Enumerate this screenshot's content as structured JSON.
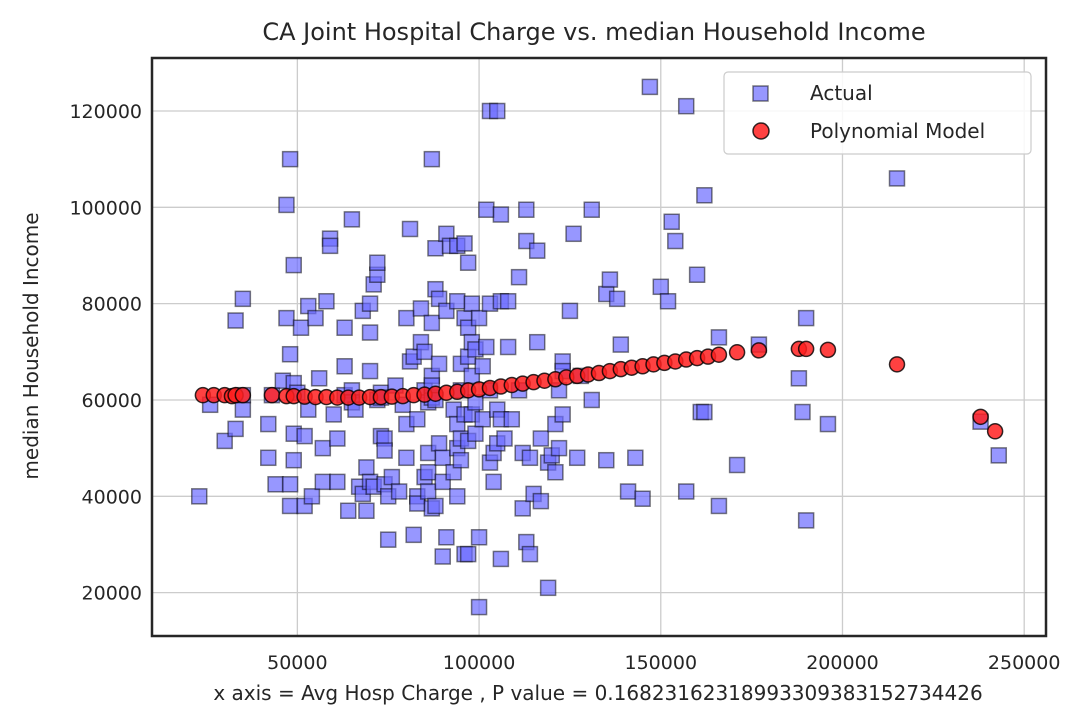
{
  "chart_data": {
    "type": "scatter",
    "title": "CA Joint Hospital Charge vs. median Household Income",
    "xlabel": "x axis = Avg Hosp Charge , P value = 0.16823162318993309383152734426",
    "ylabel": "median Household Income",
    "xlim": [
      10000,
      256000
    ],
    "ylim": [
      11000,
      131000
    ],
    "xticks": [
      50000,
      100000,
      150000,
      200000,
      250000
    ],
    "yticks": [
      20000,
      40000,
      60000,
      80000,
      100000,
      120000
    ],
    "xtick_labels": [
      "50000",
      "100000",
      "150000",
      "200000",
      "250000"
    ],
    "ytick_labels": [
      "20000",
      "40000",
      "60000",
      "80000",
      "100000",
      "120000"
    ],
    "grid": true,
    "legend_position": "top-right",
    "series": [
      {
        "name": "Actual",
        "marker": "square",
        "color": "#6b6bff",
        "points": [
          [
            23000,
            40000
          ],
          [
            26000,
            59000
          ],
          [
            30000,
            51500
          ],
          [
            33000,
            76500
          ],
          [
            33000,
            54000
          ],
          [
            35000,
            81000
          ],
          [
            35000,
            58000
          ],
          [
            35000,
            61000
          ],
          [
            42000,
            55000
          ],
          [
            42000,
            48000
          ],
          [
            43000,
            61000
          ],
          [
            44000,
            42500
          ],
          [
            46000,
            64000
          ],
          [
            47000,
            77000
          ],
          [
            47000,
            100500
          ],
          [
            48000,
            110000
          ],
          [
            48000,
            69500
          ],
          [
            48000,
            38000
          ],
          [
            48000,
            42500
          ],
          [
            49000,
            53000
          ],
          [
            49000,
            47500
          ],
          [
            49000,
            88000
          ],
          [
            49000,
            63500
          ],
          [
            50000,
            61500
          ],
          [
            51000,
            75000
          ],
          [
            52000,
            52500
          ],
          [
            52000,
            38000
          ],
          [
            53000,
            79500
          ],
          [
            53000,
            58000
          ],
          [
            54000,
            40000
          ],
          [
            55000,
            77000
          ],
          [
            56000,
            64500
          ],
          [
            57000,
            43000
          ],
          [
            57000,
            50000
          ],
          [
            58000,
            80500
          ],
          [
            59000,
            93500
          ],
          [
            59000,
            92000
          ],
          [
            60000,
            57000
          ],
          [
            61000,
            52000
          ],
          [
            61000,
            43000
          ],
          [
            63000,
            75000
          ],
          [
            63000,
            67000
          ],
          [
            63000,
            61000
          ],
          [
            64000,
            37000
          ],
          [
            65000,
            97500
          ],
          [
            65000,
            62000
          ],
          [
            65000,
            59500
          ],
          [
            66000,
            58000
          ],
          [
            67000,
            42000
          ],
          [
            68000,
            40500
          ],
          [
            68000,
            78500
          ],
          [
            69000,
            46000
          ],
          [
            69000,
            37000
          ],
          [
            70000,
            74000
          ],
          [
            70000,
            43000
          ],
          [
            70000,
            66000
          ],
          [
            70000,
            80000
          ],
          [
            71000,
            84000
          ],
          [
            71000,
            42000
          ],
          [
            72000,
            86000
          ],
          [
            72000,
            60000
          ],
          [
            72000,
            88500
          ],
          [
            73000,
            52500
          ],
          [
            73000,
            61500
          ],
          [
            73000,
            60500
          ],
          [
            74000,
            52000
          ],
          [
            74000,
            49500
          ],
          [
            74000,
            42500
          ],
          [
            75000,
            40000
          ],
          [
            75000,
            31000
          ],
          [
            76000,
            44000
          ],
          [
            77000,
            63000
          ],
          [
            78000,
            41000
          ],
          [
            79000,
            59000
          ],
          [
            80000,
            77000
          ],
          [
            80000,
            48000
          ],
          [
            80000,
            55000
          ],
          [
            81000,
            95500
          ],
          [
            81000,
            68000
          ],
          [
            82000,
            32000
          ],
          [
            82000,
            69000
          ],
          [
            83000,
            56000
          ],
          [
            83000,
            40000
          ],
          [
            83000,
            38500
          ],
          [
            84000,
            79000
          ],
          [
            84000,
            72000
          ],
          [
            85000,
            70000
          ],
          [
            85000,
            62000
          ],
          [
            85000,
            44000
          ],
          [
            86000,
            41000
          ],
          [
            86000,
            49000
          ],
          [
            86000,
            45000
          ],
          [
            86000,
            59500
          ],
          [
            87000,
            110000
          ],
          [
            87000,
            76000
          ],
          [
            87000,
            37500
          ],
          [
            87000,
            65000
          ],
          [
            87000,
            60500
          ],
          [
            87000,
            63000
          ],
          [
            88000,
            91500
          ],
          [
            88000,
            83000
          ],
          [
            88000,
            38000
          ],
          [
            88000,
            60000
          ],
          [
            89000,
            81000
          ],
          [
            89000,
            67500
          ],
          [
            89000,
            51000
          ],
          [
            90000,
            48000
          ],
          [
            90000,
            43000
          ],
          [
            90000,
            27500
          ],
          [
            91000,
            94500
          ],
          [
            91000,
            78500
          ],
          [
            91000,
            31500
          ],
          [
            92000,
            92000
          ],
          [
            93000,
            58000
          ],
          [
            93000,
            45000
          ],
          [
            94000,
            92000
          ],
          [
            94000,
            80500
          ],
          [
            94000,
            55000
          ],
          [
            94000,
            50000
          ],
          [
            94000,
            40000
          ],
          [
            95000,
            47500
          ],
          [
            95000,
            62000
          ],
          [
            95000,
            67500
          ],
          [
            95000,
            52000
          ],
          [
            96000,
            77000
          ],
          [
            96000,
            92500
          ],
          [
            96000,
            57000
          ],
          [
            96000,
            28000
          ],
          [
            97000,
            88500
          ],
          [
            97000,
            75000
          ],
          [
            97000,
            69000
          ],
          [
            97000,
            51500
          ],
          [
            97000,
            28000
          ],
          [
            98000,
            80000
          ],
          [
            98000,
            72000
          ],
          [
            98000,
            65000
          ],
          [
            98000,
            57000
          ],
          [
            99000,
            70500
          ],
          [
            99000,
            59500
          ],
          [
            99000,
            53000
          ],
          [
            100000,
            77000
          ],
          [
            100000,
            31500
          ],
          [
            100000,
            17000
          ],
          [
            101000,
            67000
          ],
          [
            101000,
            56000
          ],
          [
            102000,
            99500
          ],
          [
            102000,
            71000
          ],
          [
            103000,
            120000
          ],
          [
            103000,
            80000
          ],
          [
            103000,
            62000
          ],
          [
            103000,
            47000
          ],
          [
            104000,
            49000
          ],
          [
            104000,
            43000
          ],
          [
            105000,
            120000
          ],
          [
            105000,
            58000
          ],
          [
            105000,
            51000
          ],
          [
            106000,
            98500
          ],
          [
            106000,
            80500
          ],
          [
            106000,
            56000
          ],
          [
            106000,
            27000
          ],
          [
            107000,
            52000
          ],
          [
            108000,
            80500
          ],
          [
            108000,
            71000
          ],
          [
            109000,
            56000
          ],
          [
            111000,
            85500
          ],
          [
            111000,
            62000
          ],
          [
            112000,
            49000
          ],
          [
            112000,
            37500
          ],
          [
            113000,
            99500
          ],
          [
            113000,
            93000
          ],
          [
            113000,
            30500
          ],
          [
            114000,
            48000
          ],
          [
            114000,
            28000
          ],
          [
            115000,
            40500
          ],
          [
            116000,
            72000
          ],
          [
            116000,
            91000
          ],
          [
            117000,
            39000
          ],
          [
            117000,
            52000
          ],
          [
            119000,
            21000
          ],
          [
            119000,
            47000
          ],
          [
            120000,
            48500
          ],
          [
            121000,
            55000
          ],
          [
            121000,
            45000
          ],
          [
            122000,
            62000
          ],
          [
            122000,
            50000
          ],
          [
            123000,
            68000
          ],
          [
            123000,
            66000
          ],
          [
            123000,
            57000
          ],
          [
            125000,
            78500
          ],
          [
            126000,
            94500
          ],
          [
            127000,
            48000
          ],
          [
            128000,
            65000
          ],
          [
            131000,
            99500
          ],
          [
            131000,
            60000
          ],
          [
            135000,
            82000
          ],
          [
            135000,
            47500
          ],
          [
            136000,
            85000
          ],
          [
            138000,
            81000
          ],
          [
            139000,
            71500
          ],
          [
            141000,
            41000
          ],
          [
            143000,
            48000
          ],
          [
            145000,
            39500
          ],
          [
            147000,
            125000
          ],
          [
            150000,
            83500
          ],
          [
            152000,
            80500
          ],
          [
            153000,
            97000
          ],
          [
            154000,
            93000
          ],
          [
            157000,
            121000
          ],
          [
            157000,
            41000
          ],
          [
            160000,
            86000
          ],
          [
            161000,
            57500
          ],
          [
            162000,
            57500
          ],
          [
            162000,
            102500
          ],
          [
            166000,
            73000
          ],
          [
            166000,
            38000
          ],
          [
            171000,
            46500
          ],
          [
            177000,
            71500
          ],
          [
            188000,
            64500
          ],
          [
            189000,
            57500
          ],
          [
            190000,
            35000
          ],
          [
            190000,
            77000
          ],
          [
            196000,
            55000
          ],
          [
            215000,
            106000
          ],
          [
            238000,
            55500
          ],
          [
            243000,
            48500
          ]
        ]
      },
      {
        "name": "Polynomial Model",
        "marker": "circle",
        "color": "#ff2020",
        "points": [
          [
            24000,
            61000
          ],
          [
            27000,
            61000
          ],
          [
            30000,
            61000
          ],
          [
            32000,
            60800
          ],
          [
            33000,
            61000
          ],
          [
            35000,
            61000
          ],
          [
            43000,
            61000
          ],
          [
            47000,
            60800
          ],
          [
            49000,
            60800
          ],
          [
            52000,
            60700
          ],
          [
            55000,
            60600
          ],
          [
            58000,
            60600
          ],
          [
            61000,
            60500
          ],
          [
            64000,
            60500
          ],
          [
            67000,
            60500
          ],
          [
            70000,
            60600
          ],
          [
            73000,
            60600
          ],
          [
            76000,
            60700
          ],
          [
            79000,
            60800
          ],
          [
            82000,
            61000
          ],
          [
            85000,
            61100
          ],
          [
            88000,
            61300
          ],
          [
            91000,
            61500
          ],
          [
            94000,
            61700
          ],
          [
            97000,
            62000
          ],
          [
            100000,
            62200
          ],
          [
            103000,
            62500
          ],
          [
            106000,
            62800
          ],
          [
            109000,
            63100
          ],
          [
            112000,
            63400
          ],
          [
            115000,
            63700
          ],
          [
            118000,
            64000
          ],
          [
            121000,
            64300
          ],
          [
            124000,
            64700
          ],
          [
            127000,
            65000
          ],
          [
            130000,
            65300
          ],
          [
            133000,
            65600
          ],
          [
            136000,
            66000
          ],
          [
            139000,
            66400
          ],
          [
            142000,
            66700
          ],
          [
            145000,
            67000
          ],
          [
            148000,
            67400
          ],
          [
            151000,
            67700
          ],
          [
            154000,
            68000
          ],
          [
            157000,
            68400
          ],
          [
            160000,
            68700
          ],
          [
            163000,
            69000
          ],
          [
            166000,
            69400
          ],
          [
            171000,
            69900
          ],
          [
            177000,
            70300
          ],
          [
            188000,
            70600
          ],
          [
            190000,
            70600
          ],
          [
            196000,
            70400
          ],
          [
            215000,
            67400
          ],
          [
            238000,
            56500
          ],
          [
            242000,
            53500
          ]
        ]
      }
    ]
  }
}
